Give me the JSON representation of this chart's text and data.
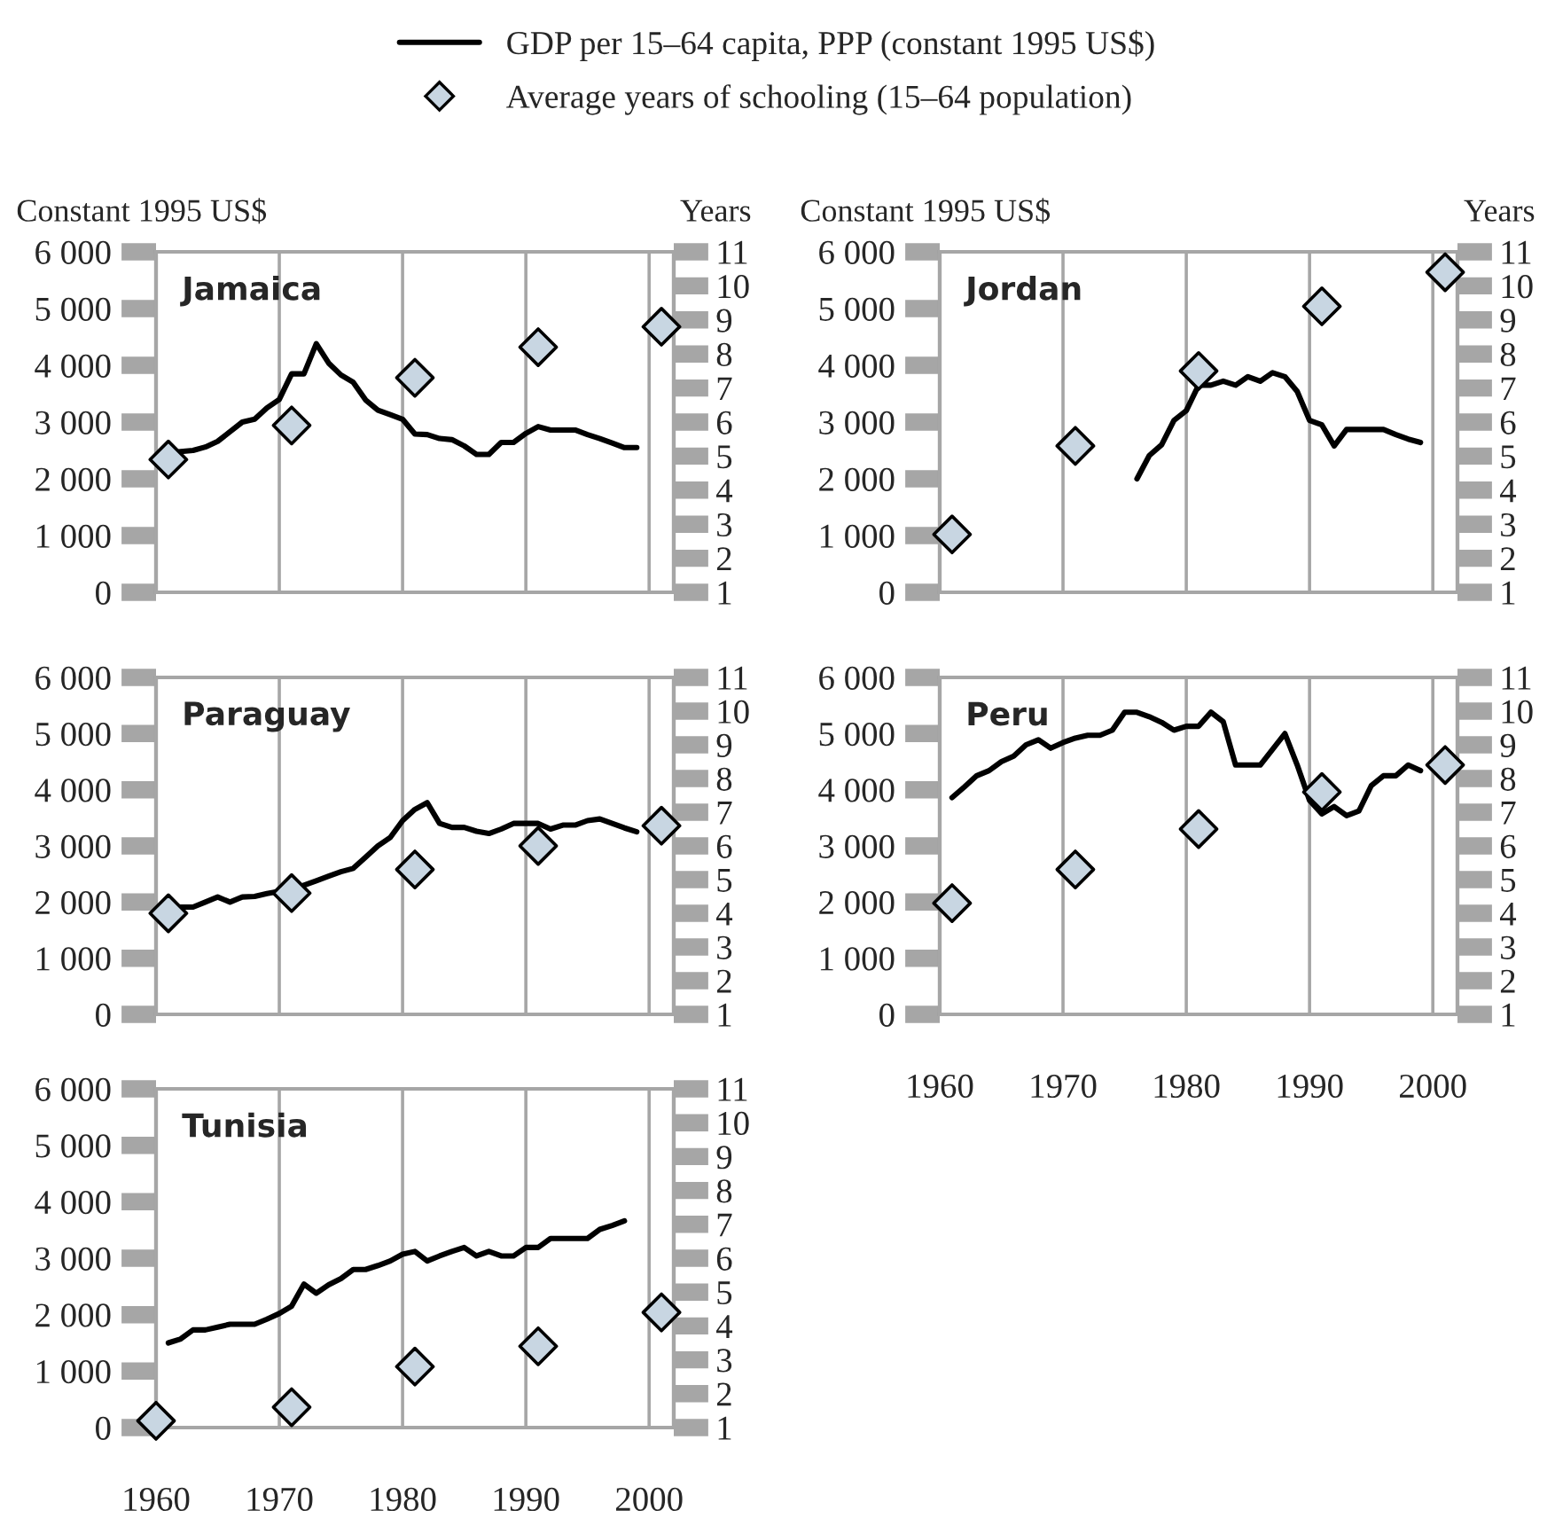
{
  "chart_data": [
    {
      "type": "line",
      "title": "Jamaica",
      "ylabel": "Constant 1995 US$",
      "y2label": "Years",
      "xlim": [
        1960,
        2002
      ],
      "xticks": [
        1960,
        1970,
        1980,
        1990,
        2000
      ],
      "ylim": [
        0,
        6000
      ],
      "yticks": [
        0,
        {
          "value": 1000,
          "label": "1 000"
        },
        {
          "value": 2000,
          "label": "2 000"
        },
        {
          "value": 3000,
          "label": "3 000"
        },
        {
          "value": 4000,
          "label": "4 000"
        },
        {
          "value": 5000,
          "label": "5 000"
        },
        {
          "value": 6000,
          "label": "6 000"
        }
      ],
      "y2lim": [
        1,
        11
      ],
      "y2ticks": [
        1,
        2,
        3,
        4,
        5,
        6,
        7,
        8,
        9,
        10,
        11
      ],
      "grid": "x",
      "tick_labels": "y",
      "legend": "top",
      "series": [
        {
          "name": "GDP per 15–64 capita, PPP (constant 1995 US$)",
          "color": "#000000",
          "x": [
            1961,
            1962,
            1963,
            1964,
            1965,
            1966,
            1967,
            1968,
            1969,
            1970,
            1971,
            1972,
            1973,
            1974,
            1975,
            1976,
            1977,
            1978,
            1979,
            1980,
            1981,
            1982,
            1983,
            1984,
            1985,
            1986,
            1987,
            1988,
            1989,
            1990,
            1991,
            1992,
            1993,
            1994,
            1995,
            1996,
            1997,
            1998,
            1999
          ],
          "values": [
            2450,
            2480,
            2500,
            2560,
            2660,
            2830,
            3000,
            3050,
            3250,
            3400,
            3850,
            3850,
            4380,
            4040,
            3830,
            3700,
            3390,
            3210,
            3130,
            3050,
            2790,
            2780,
            2710,
            2690,
            2580,
            2430,
            2430,
            2640,
            2640,
            2800,
            2920,
            2860,
            2860,
            2860,
            2780,
            2710,
            2630,
            2550,
            2550
          ]
        },
        {
          "name": "Average years of schooling (15–64 population)",
          "type": "scatter",
          "axis": "y2",
          "marker": "diamond",
          "color": "#c8d6e2",
          "x": [
            1961,
            1971,
            1981,
            1991,
            2001
          ],
          "values": [
            4.9,
            5.9,
            7.3,
            8.2,
            8.8
          ]
        }
      ]
    },
    {
      "type": "line",
      "title": "Jordan",
      "ylabel": "Constant 1995 US$",
      "y2label": "Years",
      "xlim": [
        1960,
        2002
      ],
      "xticks": [
        1960,
        1970,
        1980,
        1990,
        2000
      ],
      "ylim": [
        0,
        6000
      ],
      "yticks": [
        0,
        {
          "value": 1000,
          "label": "1 000"
        },
        {
          "value": 2000,
          "label": "2 000"
        },
        {
          "value": 3000,
          "label": "3 000"
        },
        {
          "value": 4000,
          "label": "4 000"
        },
        {
          "value": 5000,
          "label": "5 000"
        },
        {
          "value": 6000,
          "label": "6 000"
        }
      ],
      "y2lim": [
        1,
        11
      ],
      "y2ticks": [
        1,
        2,
        3,
        4,
        5,
        6,
        7,
        8,
        9,
        10,
        11
      ],
      "grid": "x",
      "tick_labels": "y",
      "series": [
        {
          "color": "#000000",
          "x": [
            1976,
            1977,
            1978,
            1979,
            1980,
            1981,
            1982,
            1983,
            1984,
            1985,
            1986,
            1987,
            1988,
            1989,
            1990,
            1991,
            1992,
            1993,
            1994,
            1995,
            1996,
            1997,
            1998,
            1999
          ],
          "values": [
            2000,
            2410,
            2600,
            3030,
            3200,
            3650,
            3650,
            3720,
            3650,
            3800,
            3720,
            3870,
            3800,
            3540,
            3030,
            2950,
            2580,
            2870,
            2870,
            2870,
            2870,
            2780,
            2700,
            2640
          ]
        },
        {
          "type": "scatter",
          "axis": "y2",
          "marker": "diamond",
          "color": "#c8d6e2",
          "x": [
            1961,
            1971,
            1981,
            1991,
            2001
          ],
          "values": [
            2.7,
            5.3,
            7.5,
            9.4,
            10.4
          ]
        }
      ]
    },
    {
      "type": "line",
      "title": "Paraguay",
      "xlim": [
        1960,
        2002
      ],
      "xticks": [
        1960,
        1970,
        1980,
        1990,
        2000
      ],
      "ylim": [
        0,
        6000
      ],
      "yticks": [
        0,
        {
          "value": 1000,
          "label": "1 000"
        },
        {
          "value": 2000,
          "label": "2 000"
        },
        {
          "value": 3000,
          "label": "3 000"
        },
        {
          "value": 4000,
          "label": "4 000"
        },
        {
          "value": 5000,
          "label": "5 000"
        },
        {
          "value": 6000,
          "label": "6 000"
        }
      ],
      "y2lim": [
        1,
        11
      ],
      "y2ticks": [
        1,
        2,
        3,
        4,
        5,
        6,
        7,
        8,
        9,
        10,
        11
      ],
      "grid": "x",
      "tick_labels": "y",
      "series": [
        {
          "color": "#000000",
          "x": [
            1961,
            1962,
            1963,
            1964,
            1965,
            1966,
            1967,
            1968,
            1969,
            1970,
            1971,
            1972,
            1973,
            1974,
            1975,
            1976,
            1977,
            1978,
            1979,
            1980,
            1981,
            1982,
            1983,
            1984,
            1985,
            1986,
            1987,
            1988,
            1989,
            1990,
            1991,
            1992,
            1993,
            1994,
            1995,
            1996,
            1997,
            1998,
            1999
          ],
          "values": [
            1910,
            1910,
            1910,
            2000,
            2090,
            2000,
            2090,
            2100,
            2150,
            2190,
            2220,
            2300,
            2380,
            2460,
            2540,
            2600,
            2800,
            3000,
            3150,
            3450,
            3650,
            3770,
            3400,
            3330,
            3330,
            3260,
            3220,
            3300,
            3400,
            3400,
            3400,
            3300,
            3370,
            3370,
            3450,
            3480,
            3400,
            3320,
            3250
          ]
        },
        {
          "type": "scatter",
          "axis": "y2",
          "marker": "diamond",
          "color": "#c8d6e2",
          "x": [
            1961,
            1971,
            1981,
            1991,
            2001
          ],
          "values": [
            4.0,
            4.6,
            5.3,
            6.0,
            6.6
          ]
        }
      ]
    },
    {
      "type": "line",
      "title": "Peru",
      "xlim": [
        1960,
        2002
      ],
      "xticks": [
        1960,
        1970,
        1980,
        1990,
        2000
      ],
      "ylim": [
        0,
        6000
      ],
      "yticks": [
        0,
        {
          "value": 1000,
          "label": "1 000"
        },
        {
          "value": 2000,
          "label": "2 000"
        },
        {
          "value": 3000,
          "label": "3 000"
        },
        {
          "value": 4000,
          "label": "4 000"
        },
        {
          "value": 5000,
          "label": "5 000"
        },
        {
          "value": 6000,
          "label": "6 000"
        }
      ],
      "y2lim": [
        1,
        11
      ],
      "y2ticks": [
        1,
        2,
        3,
        4,
        5,
        6,
        7,
        8,
        9,
        10,
        11
      ],
      "grid": "x",
      "series": [
        {
          "color": "#000000",
          "x": [
            1961,
            1962,
            1963,
            1964,
            1965,
            1966,
            1967,
            1968,
            1969,
            1970,
            1971,
            1972,
            1973,
            1974,
            1975,
            1976,
            1977,
            1978,
            1979,
            1980,
            1981,
            1982,
            1983,
            1984,
            1985,
            1986,
            1987,
            1988,
            1989,
            1990,
            1991,
            1992,
            1993,
            1994,
            1995,
            1996,
            1997,
            1998,
            1999
          ],
          "values": [
            3860,
            4050,
            4250,
            4340,
            4500,
            4600,
            4800,
            4890,
            4740,
            4840,
            4920,
            4970,
            4970,
            5060,
            5380,
            5380,
            5300,
            5200,
            5060,
            5130,
            5130,
            5380,
            5210,
            4440,
            4440,
            4440,
            4720,
            5000,
            4440,
            3810,
            3570,
            3700,
            3540,
            3620,
            4070,
            4250,
            4250,
            4440,
            4340
          ]
        },
        {
          "type": "scatter",
          "axis": "y2",
          "marker": "diamond",
          "color": "#c8d6e2",
          "x": [
            1961,
            1971,
            1981,
            1991,
            2001
          ],
          "values": [
            4.3,
            5.3,
            6.5,
            7.6,
            8.4
          ]
        }
      ]
    },
    {
      "type": "line",
      "title": "Tunisia",
      "xlim": [
        1960,
        2002
      ],
      "xticks": [
        1960,
        1970,
        1980,
        1990,
        2000
      ],
      "ylim": [
        0,
        6000
      ],
      "yticks": [
        0,
        {
          "value": 1000,
          "label": "1 000"
        },
        {
          "value": 2000,
          "label": "2 000"
        },
        {
          "value": 3000,
          "label": "3 000"
        },
        {
          "value": 4000,
          "label": "4 000"
        },
        {
          "value": 5000,
          "label": "5 000"
        },
        {
          "value": 6000,
          "label": "6 000"
        }
      ],
      "y2lim": [
        1,
        11
      ],
      "y2ticks": [
        1,
        2,
        3,
        4,
        5,
        6,
        7,
        8,
        9,
        10,
        11
      ],
      "grid": "x",
      "series": [
        {
          "color": "#000000",
          "x": [
            1961,
            1962,
            1963,
            1964,
            1965,
            1966,
            1967,
            1968,
            1969,
            1970,
            1971,
            1972,
            1973,
            1974,
            1975,
            1976,
            1977,
            1978,
            1979,
            1980,
            1981,
            1982,
            1983,
            1984,
            1985,
            1986,
            1987,
            1988,
            1989,
            1990,
            1991,
            1992,
            1993,
            1994,
            1995,
            1996,
            1997,
            1998
          ],
          "values": [
            1500,
            1570,
            1730,
            1730,
            1780,
            1830,
            1830,
            1830,
            1920,
            2020,
            2150,
            2540,
            2380,
            2530,
            2640,
            2800,
            2800,
            2870,
            2950,
            3070,
            3120,
            2950,
            3040,
            3120,
            3190,
            3040,
            3120,
            3040,
            3040,
            3190,
            3190,
            3350,
            3350,
            3350,
            3350,
            3510,
            3580,
            3660
          ]
        },
        {
          "type": "scatter",
          "axis": "y2",
          "marker": "diamond",
          "color": "#c8d6e2",
          "x": [
            1960,
            1971,
            1981,
            1991,
            2001
          ],
          "values": [
            1.2,
            1.6,
            2.8,
            3.4,
            4.4
          ]
        }
      ]
    }
  ]
}
